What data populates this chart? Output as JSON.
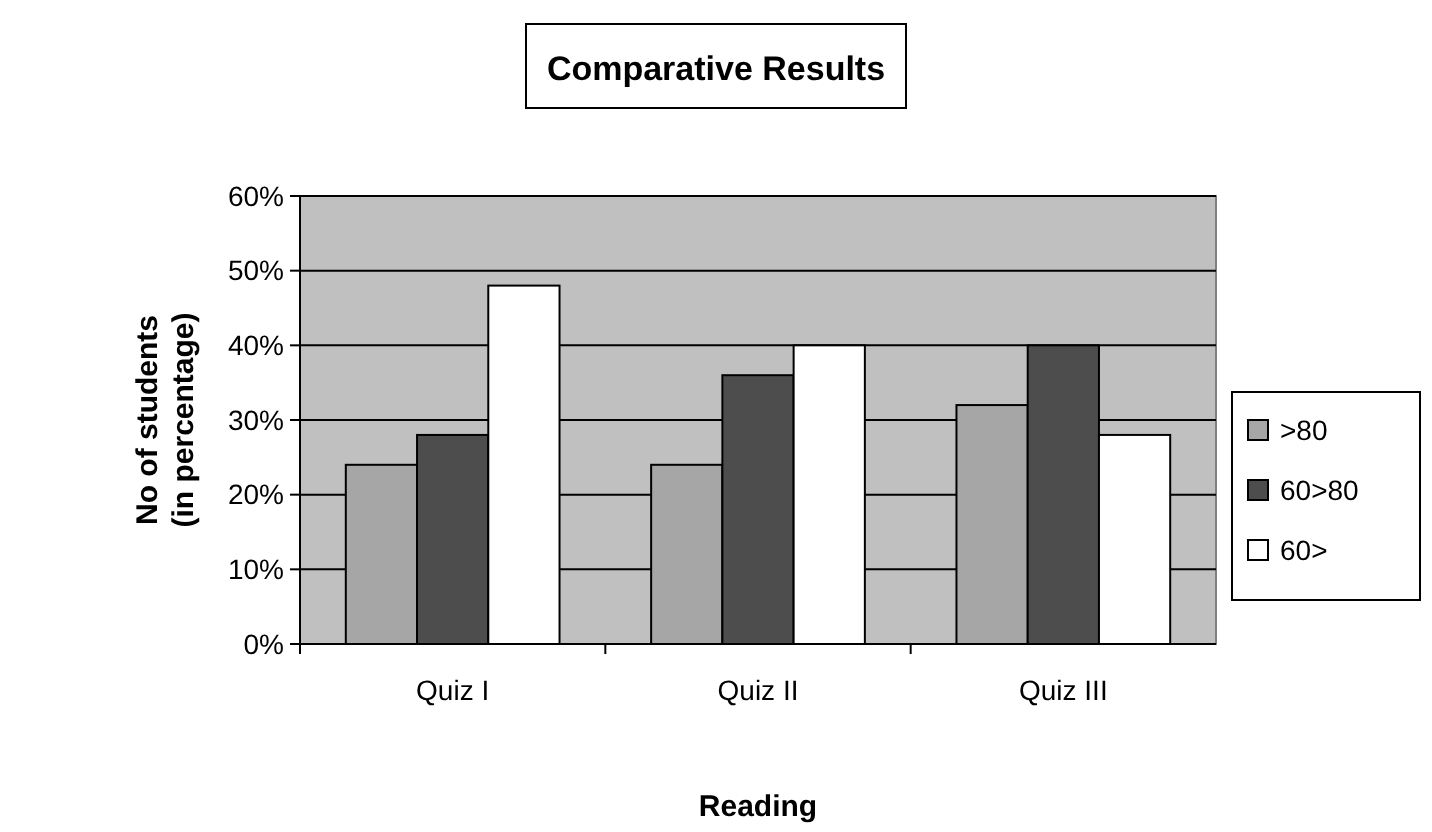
{
  "chart_data": {
    "type": "bar",
    "title": "Comparative Results",
    "xlabel": "Reading",
    "ylabel": "No of students (in percentage)",
    "categories": [
      "Quiz I",
      "Quiz II",
      "Quiz III"
    ],
    "series": [
      {
        "name": ">80",
        "color": "#a6a6a6",
        "values": [
          24,
          24,
          32
        ]
      },
      {
        "name": "60>80",
        "color": "#4d4d4d",
        "values": [
          28,
          36,
          40
        ]
      },
      {
        "name": "60>",
        "color": "#ffffff",
        "values": [
          48,
          40,
          28
        ]
      }
    ],
    "ylim": [
      0,
      60
    ],
    "yticks": [
      {
        "value": 0,
        "label": "0%"
      },
      {
        "value": 10,
        "label": "10%"
      },
      {
        "value": 20,
        "label": "20%"
      },
      {
        "value": 30,
        "label": "30%"
      },
      {
        "value": 40,
        "label": "40%"
      },
      {
        "value": 50,
        "label": "50%"
      },
      {
        "value": 60,
        "label": "60%"
      }
    ],
    "grid": "y",
    "legend": "right"
  }
}
